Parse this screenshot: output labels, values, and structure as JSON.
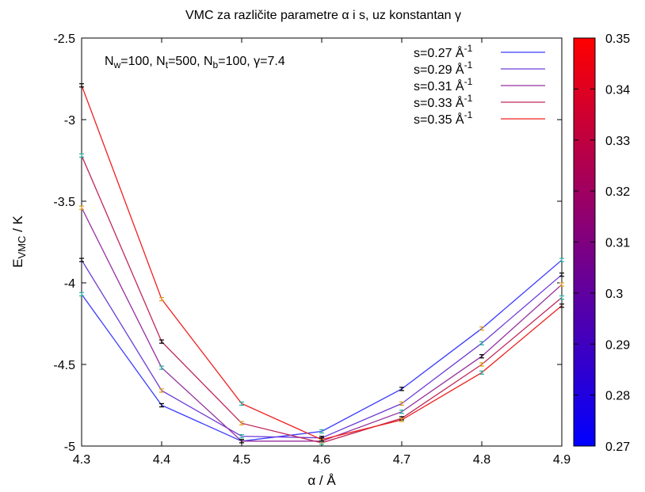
{
  "chart_data": {
    "type": "line",
    "title": "VMC za različite parametre α i s, uz konstantan γ",
    "xlabel": "α / Å",
    "ylabel": {
      "main": "E",
      "sub": "VMC",
      "rest": " / K"
    },
    "xlim": [
      4.3,
      4.9
    ],
    "ylim": [
      -5.0,
      -2.5
    ],
    "xticks": [
      4.3,
      4.4,
      4.5,
      4.6,
      4.7,
      4.8,
      4.9
    ],
    "xtick_labels": [
      "4.3",
      "4.4",
      "4.5",
      "4.6",
      "4.7",
      "4.8",
      "4.9"
    ],
    "yticks": [
      -5.0,
      -4.5,
      -4.0,
      -3.5,
      -3.0,
      -2.5
    ],
    "ytick_labels": [
      "-5",
      "-4.5",
      "-4",
      "-3.5",
      "-3",
      "-2.5"
    ],
    "grid": false,
    "legend_position": "top-right",
    "annotation": [
      {
        "t": "N",
        "s": "base"
      },
      {
        "t": "w",
        "s": "sub"
      },
      {
        "t": "=100, N",
        "s": "base"
      },
      {
        "t": "t",
        "s": "sub"
      },
      {
        "t": "=500, N",
        "s": "base"
      },
      {
        "t": "b",
        "s": "sub"
      },
      {
        "t": "=100, γ=7.4",
        "s": "base"
      }
    ],
    "x": [
      4.3,
      4.4,
      4.5,
      4.6,
      4.7,
      4.8,
      4.9
    ],
    "series": [
      {
        "name": "s=0.27 Å",
        "sup": "-1",
        "s": 0.27,
        "color": "#3a3aff",
        "values": [
          -4.07,
          -4.75,
          -4.97,
          -4.91,
          -4.65,
          -4.28,
          -3.86
        ],
        "errors": [
          0.01,
          0.01,
          0.01,
          0.01,
          0.01,
          0.01,
          0.01
        ]
      },
      {
        "name": "s=0.29 Å",
        "sup": "-1",
        "s": 0.29,
        "color": "#6e3ed6",
        "values": [
          -3.86,
          -4.66,
          -4.94,
          -4.95,
          -4.74,
          -4.37,
          -3.95
        ],
        "errors": [
          0.01,
          0.01,
          0.01,
          0.01,
          0.01,
          0.01,
          0.01
        ]
      },
      {
        "name": "s=0.31 Å",
        "sup": "-1",
        "s": 0.31,
        "color": "#96329e",
        "values": [
          -3.54,
          -4.52,
          -4.97,
          -4.97,
          -4.79,
          -4.45,
          -4.01
        ],
        "errors": [
          0.01,
          0.01,
          0.01,
          0.01,
          0.01,
          0.01,
          0.01
        ]
      },
      {
        "name": "s=0.33 Å",
        "sup": "-1",
        "s": 0.33,
        "color": "#c0285a",
        "values": [
          -3.22,
          -4.36,
          -4.86,
          -4.98,
          -4.83,
          -4.5,
          -4.09
        ],
        "errors": [
          0.01,
          0.01,
          0.01,
          0.01,
          0.01,
          0.01,
          0.01
        ]
      },
      {
        "name": "s=0.35 Å",
        "sup": "-1",
        "s": 0.35,
        "color": "#f02020",
        "values": [
          -2.79,
          -4.1,
          -4.74,
          -4.96,
          -4.84,
          -4.55,
          -4.14
        ],
        "errors": [
          0.01,
          0.01,
          0.01,
          0.01,
          0.01,
          0.01,
          0.01
        ]
      }
    ],
    "errorbar_colors": [
      "#2ab0a0",
      "#000000",
      "#e0a020"
    ],
    "colorbar": {
      "min": 0.27,
      "max": 0.35,
      "ticks": [
        0.27,
        0.28,
        0.29,
        0.3,
        0.31,
        0.32,
        0.33,
        0.34,
        0.35
      ],
      "tick_labels": [
        "0.27",
        "0.28",
        "0.29",
        "0.3",
        "0.31",
        "0.32",
        "0.33",
        "0.34",
        "0.35"
      ],
      "color_low": "#0000ff",
      "color_high": "#ff0000"
    }
  }
}
